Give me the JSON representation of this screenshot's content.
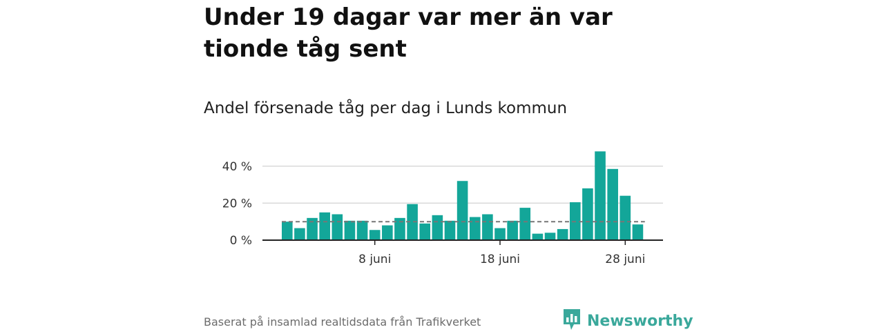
{
  "page": {
    "title": "Under 19 dagar var mer än var tionde tåg sent",
    "subtitle": "Andel försenade tåg per dag i Lunds kommun",
    "footer": "Baserat på insamlad realtidsdata från Trafikverket",
    "brand": "Newsworthy"
  },
  "colors": {
    "bar": "#13a699",
    "reference_line": "#777777",
    "grid": "#d9d9d9",
    "axis": "#222222",
    "brand": "#3aa89b"
  },
  "icons": {
    "brand": "bar-chart-speech-bubble-icon"
  },
  "chart_data": {
    "type": "bar",
    "title": "Andel försenade tåg per dag i Lunds kommun",
    "x": [
      "1 juni",
      "2 juni",
      "3 juni",
      "4 juni",
      "5 juni",
      "6 juni",
      "7 juni",
      "8 juni",
      "9 juni",
      "10 juni",
      "11 juni",
      "12 juni",
      "13 juni",
      "14 juni",
      "15 juni",
      "16 juni",
      "17 juni",
      "18 juni",
      "19 juni",
      "20 juni",
      "21 juni",
      "22 juni",
      "23 juni",
      "24 juni",
      "25 juni",
      "26 juni",
      "27 juni",
      "28 juni",
      "29 juni",
      "30 juni"
    ],
    "values": [
      10,
      6.5,
      12,
      15,
      14,
      10.5,
      10.5,
      5.5,
      8,
      12,
      19.5,
      9,
      13.5,
      10.5,
      32,
      12.5,
      14,
      6.5,
      10.5,
      17.5,
      3.5,
      4,
      6,
      20.5,
      28,
      48,
      38.5,
      24,
      8.5,
      0
    ],
    "reference_value": 10,
    "ylim": [
      0,
      50
    ],
    "yticks": [
      0,
      20,
      40
    ],
    "ytick_labels": [
      "0 %",
      "20 %",
      "40 %"
    ],
    "xticks": [
      "8 juni",
      "18 juni",
      "28 juni"
    ],
    "grid": true,
    "legend": "none"
  }
}
